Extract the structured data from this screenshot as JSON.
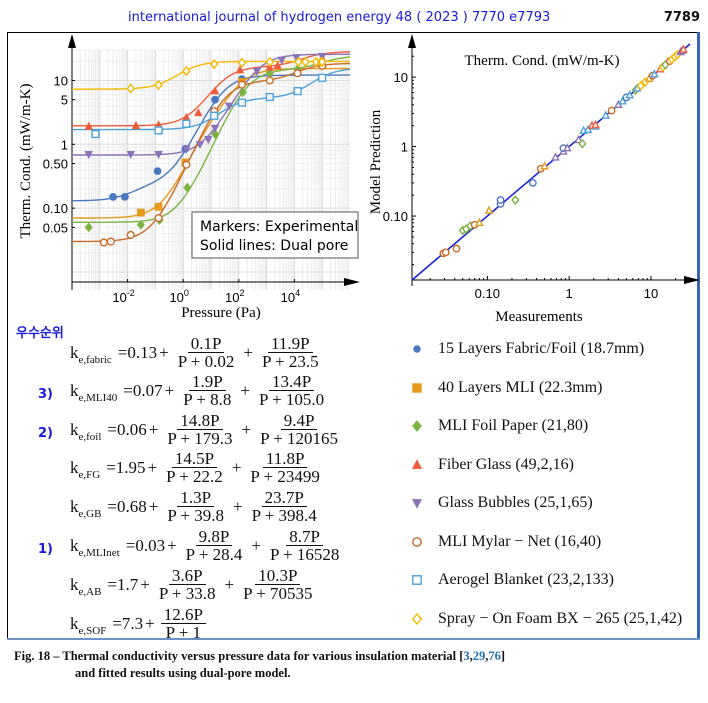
{
  "header": {
    "journal": "international journal of hydrogen energy 48 ( 2023 ) 7770 e7793",
    "page_number": "7789"
  },
  "chart_data": [
    {
      "type": "line",
      "title": "",
      "xlabel": "Pressure (Pa)",
      "ylabel": "Therm. Cond. (mW/m-K)",
      "xscale": "log",
      "yscale": "log",
      "xlim": [
        0.0001,
        1000000
      ],
      "ylim": [
        0.01,
        30
      ],
      "xticks": [
        {
          "value": 0.01,
          "label": "10",
          "exp": "-2"
        },
        {
          "value": 1,
          "label": "10",
          "exp": "0"
        },
        {
          "value": 100,
          "label": "10",
          "exp": "2"
        },
        {
          "value": 10000,
          "label": "10",
          "exp": "4"
        }
      ],
      "yticks": [
        {
          "value": 0.05,
          "label": "0.05"
        },
        {
          "value": 0.1,
          "label": "0.10"
        },
        {
          "value": 0.5,
          "label": "0.50"
        },
        {
          "value": 1,
          "label": "1"
        },
        {
          "value": 5,
          "label": "5"
        },
        {
          "value": 10,
          "label": "10"
        }
      ],
      "grid": true,
      "annotation": [
        "Markers: Experimental",
        "Solid lines: Dual pore"
      ],
      "annotation_position": "bottom-right",
      "series": [
        {
          "name": "15 Layers Fabric/Foil (18.7mm)",
          "color": "#4a78c0",
          "marker": "circle-filled",
          "fit": {
            "k0": 0.13,
            "terms": [
              [
                0.1,
                0.02
              ],
              [
                11.9,
                23.5
              ]
            ]
          },
          "points": [
            [
              0.003,
              0.15
            ],
            [
              0.008,
              0.15
            ],
            [
              0.12,
              0.38
            ],
            [
              1.2,
              0.85
            ],
            [
              14,
              5.0
            ],
            [
              130,
              10.5
            ]
          ]
        },
        {
          "name": "40 Layers MLI (22.3mm)",
          "color": "#e69a1f",
          "marker": "square-filled",
          "fit": {
            "k0": 0.07,
            "terms": [
              [
                1.9,
                8.8
              ],
              [
                13.4,
                105.0
              ]
            ]
          },
          "points": [
            [
              0.03,
              0.085
            ],
            [
              0.13,
              0.105
            ],
            [
              1.2,
              0.52
            ],
            [
              13,
              2.8
            ],
            [
              130,
              9.5
            ]
          ]
        },
        {
          "name": "MLI Foil Paper (21,80)",
          "color": "#7cb342",
          "marker": "diamond-filled",
          "fit": {
            "k0": 0.06,
            "terms": [
              [
                14.8,
                179.3
              ],
              [
                9.4,
                120165
              ]
            ]
          },
          "points": [
            [
              0.0004,
              0.05
            ],
            [
              0.03,
              0.055
            ],
            [
              0.14,
              0.065
            ],
            [
              1.4,
              0.21
            ],
            [
              14,
              1.45
            ],
            [
              140,
              6.5
            ],
            [
              1300,
              13
            ],
            [
              13000,
              15
            ],
            [
              100000,
              18
            ]
          ]
        },
        {
          "name": "Fiber Glass (49,2,16)",
          "color": "#ef5b3a",
          "marker": "triangle-up-filled",
          "fit": {
            "k0": 1.95,
            "terms": [
              [
                14.5,
                22.2
              ],
              [
                11.8,
                23499
              ]
            ]
          },
          "points": [
            [
              0.0004,
              1.9
            ],
            [
              0.02,
              1.95
            ],
            [
              0.13,
              2.0
            ],
            [
              1.3,
              2.6
            ],
            [
              3.5,
              3.1
            ],
            [
              14,
              6.8
            ],
            [
              110,
              14.5
            ],
            [
              1300,
              16
            ],
            [
              2500,
              17
            ],
            [
              100000,
              22
            ]
          ]
        },
        {
          "name": "Glass Bubbles (25,1,65)",
          "color": "#8a72b8",
          "marker": "triangle-down-filled",
          "fit": {
            "k0": 0.68,
            "terms": [
              [
                1.3,
                39.8
              ],
              [
                23.7,
                398.4
              ]
            ]
          },
          "points": [
            [
              0.0004,
              0.7
            ],
            [
              0.013,
              0.7
            ],
            [
              0.13,
              0.7
            ],
            [
              1.3,
              0.85
            ],
            [
              4,
              1.0
            ],
            [
              8,
              1.2
            ],
            [
              14,
              1.8
            ],
            [
              45,
              4.0
            ],
            [
              450,
              14
            ],
            [
              3500,
              21
            ],
            [
              12000,
              23
            ],
            [
              100000,
              24
            ]
          ]
        },
        {
          "name": "MLI Mylar - Net (16,40)",
          "color": "#c96a28",
          "marker": "circle-open",
          "fit": {
            "k0": 0.03,
            "terms": [
              [
                9.8,
                28.4
              ],
              [
                8.7,
                16528
              ]
            ]
          },
          "points": [
            [
              0.0014,
              0.029
            ],
            [
              0.0025,
              0.03
            ],
            [
              0.013,
              0.038
            ],
            [
              0.13,
              0.07
            ],
            [
              1.3,
              0.48
            ],
            [
              13,
              3.3
            ],
            [
              130,
              8.6
            ],
            [
              1300,
              10
            ],
            [
              13000,
              13
            ],
            [
              100000,
              17
            ]
          ]
        },
        {
          "name": "Aerogel Blanket (23,2,133)",
          "color": "#4ea0d8",
          "marker": "square-open",
          "fit": {
            "k0": 1.7,
            "terms": [
              [
                3.6,
                33.8
              ],
              [
                10.3,
                70535
              ]
            ]
          },
          "points": [
            [
              0.0007,
              1.45
            ],
            [
              0.13,
              1.65
            ],
            [
              1.3,
              2.1
            ],
            [
              13,
              2.8
            ],
            [
              130,
              4.5
            ],
            [
              1300,
              5.5
            ],
            [
              13000,
              6.8
            ],
            [
              100000,
              11
            ]
          ]
        },
        {
          "name": "Spray - On Foam BX - 265 (25,1,42)",
          "color": "#f5b800",
          "marker": "diamond-open",
          "fit": {
            "k0": 7.3,
            "terms": [
              [
                12.6,
                1
              ]
            ]
          },
          "points": [
            [
              0.013,
              7.5
            ],
            [
              0.13,
              8.5
            ],
            [
              1.3,
              14
            ],
            [
              13,
              18
            ],
            [
              130,
              19
            ],
            [
              1300,
              19.5
            ],
            [
              14000,
              19.5
            ],
            [
              25000,
              19.5
            ],
            [
              60000,
              19.5
            ],
            [
              90000,
              19.5
            ],
            [
              100000,
              19.5
            ]
          ]
        }
      ]
    },
    {
      "type": "scatter",
      "title": "Therm. Cond. (mW/m-K)",
      "xlabel": "Measurements",
      "ylabel": "Model Prediction",
      "xscale": "log",
      "yscale": "log",
      "xlim": [
        0.012,
        30
      ],
      "ylim": [
        0.012,
        30
      ],
      "xticks": [
        {
          "value": 0.1,
          "label": "0.10"
        },
        {
          "value": 1,
          "label": "1"
        },
        {
          "value": 10,
          "label": "10"
        }
      ],
      "yticks": [
        {
          "value": 0.1,
          "label": "0.10"
        },
        {
          "value": 1,
          "label": "1"
        },
        {
          "value": 10,
          "label": "10"
        }
      ],
      "reference_line": {
        "label": "y = x",
        "color": "#1a22d8"
      },
      "points": [
        {
          "x": 0.029,
          "y": 0.029,
          "color": "#c96a28",
          "m": "o"
        },
        {
          "x": 0.031,
          "y": 0.03,
          "color": "#c96a28",
          "m": "o"
        },
        {
          "x": 0.042,
          "y": 0.034,
          "color": "#c96a28",
          "m": "o"
        },
        {
          "x": 0.05,
          "y": 0.062,
          "color": "#7cb342",
          "m": "d"
        },
        {
          "x": 0.055,
          "y": 0.065,
          "color": "#7cb342",
          "m": "d"
        },
        {
          "x": 0.062,
          "y": 0.072,
          "color": "#7cb342",
          "m": "d"
        },
        {
          "x": 0.07,
          "y": 0.075,
          "color": "#c96a28",
          "m": "o"
        },
        {
          "x": 0.08,
          "y": 0.08,
          "color": "#e69a1f",
          "m": "t"
        },
        {
          "x": 0.105,
          "y": 0.12,
          "color": "#e69a1f",
          "m": "t"
        },
        {
          "x": 0.145,
          "y": 0.15,
          "color": "#4a78c0",
          "m": "o"
        },
        {
          "x": 0.145,
          "y": 0.17,
          "color": "#4a78c0",
          "m": "o"
        },
        {
          "x": 0.22,
          "y": 0.17,
          "color": "#7cb342",
          "m": "d"
        },
        {
          "x": 0.36,
          "y": 0.3,
          "color": "#4a78c0",
          "m": "o"
        },
        {
          "x": 0.45,
          "y": 0.48,
          "color": "#c96a28",
          "m": "o"
        },
        {
          "x": 0.5,
          "y": 0.52,
          "color": "#e69a1f",
          "m": "t"
        },
        {
          "x": 0.68,
          "y": 0.7,
          "color": "#8a72b8",
          "m": "t"
        },
        {
          "x": 0.85,
          "y": 0.85,
          "color": "#8a72b8",
          "m": "t"
        },
        {
          "x": 0.85,
          "y": 0.95,
          "color": "#4a78c0",
          "m": "o"
        },
        {
          "x": 0.95,
          "y": 0.95,
          "color": "#8a72b8",
          "m": "t"
        },
        {
          "x": 1.3,
          "y": 1.25,
          "color": "#8a72b8",
          "m": "t"
        },
        {
          "x": 1.45,
          "y": 1.1,
          "color": "#7cb342",
          "m": "d"
        },
        {
          "x": 1.5,
          "y": 1.7,
          "color": "#4ea0d8",
          "m": "t"
        },
        {
          "x": 1.7,
          "y": 1.75,
          "color": "#4ea0d8",
          "m": "t"
        },
        {
          "x": 1.9,
          "y": 2.0,
          "color": "#ef5b3a",
          "m": "t"
        },
        {
          "x": 2.1,
          "y": 1.95,
          "color": "#4ea0d8",
          "m": "t"
        },
        {
          "x": 2.1,
          "y": 2.05,
          "color": "#ef5b3a",
          "m": "t"
        },
        {
          "x": 2.8,
          "y": 2.8,
          "color": "#4ea0d8",
          "m": "t"
        },
        {
          "x": 3.3,
          "y": 3.3,
          "color": "#c96a28",
          "m": "o"
        },
        {
          "x": 4.0,
          "y": 4.0,
          "color": "#8a72b8",
          "m": "t"
        },
        {
          "x": 4.5,
          "y": 4.5,
          "color": "#4ea0d8",
          "m": "t"
        },
        {
          "x": 5.0,
          "y": 5.1,
          "color": "#4a78c0",
          "m": "o"
        },
        {
          "x": 5.5,
          "y": 5.5,
          "color": "#4ea0d8",
          "m": "t"
        },
        {
          "x": 6.5,
          "y": 6.5,
          "color": "#7cb342",
          "m": "d"
        },
        {
          "x": 6.8,
          "y": 6.9,
          "color": "#4ea0d8",
          "m": "t"
        },
        {
          "x": 7.5,
          "y": 7.5,
          "color": "#f5b800",
          "m": "d"
        },
        {
          "x": 8.5,
          "y": 8.5,
          "color": "#f5b800",
          "m": "d"
        },
        {
          "x": 9.5,
          "y": 9.5,
          "color": "#e69a1f",
          "m": "t"
        },
        {
          "x": 10.5,
          "y": 10.5,
          "color": "#c96a28",
          "m": "o"
        },
        {
          "x": 11,
          "y": 11,
          "color": "#4ea0d8",
          "m": "t"
        },
        {
          "x": 13,
          "y": 13,
          "color": "#ef5b3a",
          "m": "t"
        },
        {
          "x": 14,
          "y": 14,
          "color": "#f5b800",
          "m": "d"
        },
        {
          "x": 15,
          "y": 15,
          "color": "#7cb342",
          "m": "d"
        },
        {
          "x": 17,
          "y": 17,
          "color": "#c96a28",
          "m": "o"
        },
        {
          "x": 18,
          "y": 18,
          "color": "#f5b800",
          "m": "d"
        },
        {
          "x": 19.5,
          "y": 19.5,
          "color": "#f5b800",
          "m": "d"
        },
        {
          "x": 21,
          "y": 21,
          "color": "#f5b800",
          "m": "d"
        },
        {
          "x": 23,
          "y": 23,
          "color": "#8a72b8",
          "m": "t"
        },
        {
          "x": 24,
          "y": 24,
          "color": "#8a72b8",
          "m": "t"
        },
        {
          "x": 25,
          "y": 25,
          "color": "#ef5b3a",
          "m": "t"
        }
      ]
    }
  ],
  "ranking": {
    "title": "우수순위",
    "labels": [
      "3)",
      "2)",
      "1)"
    ]
  },
  "equations": [
    {
      "name": "fabric",
      "lhs": "k",
      "sub": "e,fabric",
      "k0": "0.13",
      "fracs": [
        [
          "0.1P",
          "P + 0.02"
        ],
        [
          "11.9P",
          "P + 23.5"
        ]
      ],
      "rank": ""
    },
    {
      "name": "MLI40",
      "lhs": "k",
      "sub": "e,MLI40",
      "k0": "0.07",
      "fracs": [
        [
          "1.9P",
          "P + 8.8"
        ],
        [
          "13.4P",
          "P + 105.0"
        ]
      ],
      "rank": "3)"
    },
    {
      "name": "foil",
      "lhs": "k",
      "sub": "e,foil",
      "k0": "0.06",
      "fracs": [
        [
          "14.8P",
          "P + 179.3"
        ],
        [
          "9.4P",
          "P + 120165"
        ]
      ],
      "rank": "2)"
    },
    {
      "name": "FG",
      "lhs": "k",
      "sub": "e,FG",
      "k0": "1.95",
      "fracs": [
        [
          "14.5P",
          "P + 22.2"
        ],
        [
          "11.8P",
          "P + 23499"
        ]
      ],
      "rank": ""
    },
    {
      "name": "GB",
      "lhs": "k",
      "sub": "e,GB",
      "k0": "0.68",
      "fracs": [
        [
          "1.3P",
          "P + 39.8"
        ],
        [
          "23.7P",
          "P + 398.4"
        ]
      ],
      "rank": ""
    },
    {
      "name": "MLInet",
      "lhs": "k",
      "sub": "e,MLInet",
      "k0": "0.03",
      "fracs": [
        [
          "9.8P",
          "P + 28.4"
        ],
        [
          "8.7P",
          "P + 16528"
        ]
      ],
      "rank": "1)"
    },
    {
      "name": "AB",
      "lhs": "k",
      "sub": "e,AB",
      "k0": "1.7",
      "fracs": [
        [
          "3.6P",
          "P + 33.8"
        ],
        [
          "10.3P",
          "P + 70535"
        ]
      ],
      "rank": ""
    },
    {
      "name": "SOF",
      "lhs": "k",
      "sub": "e,SOF",
      "k0": "7.3",
      "fracs": [
        [
          "12.6P",
          "P + 1"
        ]
      ],
      "rank": ""
    }
  ],
  "legend": [
    {
      "label": "15 Layers Fabric/Foil (18.7mm)",
      "marker": "circle-filled",
      "color": "#4a78c0"
    },
    {
      "label": "40 Layers MLI (22.3mm)",
      "marker": "square-filled",
      "color": "#e69a1f"
    },
    {
      "label": "MLI Foil Paper (21,80)",
      "marker": "diamond-filled",
      "color": "#7cb342"
    },
    {
      "label": "Fiber Glass (49,2,16)",
      "marker": "triangle-up-filled",
      "color": "#ef5b3a"
    },
    {
      "label": "Glass Bubbles (25,1,65)",
      "marker": "triangle-down-filled",
      "color": "#8a72b8"
    },
    {
      "label": "MLI Mylar − Net (16,40)",
      "marker": "circle-open",
      "color": "#c96a28"
    },
    {
      "label": "Aerogel Blanket (23,2,133)",
      "marker": "square-open",
      "color": "#4ea0d8"
    },
    {
      "label": "Spray − On Foam BX − 265 (25,1,42)",
      "marker": "diamond-open",
      "color": "#f5b800"
    }
  ],
  "caption": {
    "prefix": "Fig. 18 – Thermal conductivity versus pressure data for various insulation material [",
    "refs": [
      "3",
      "29",
      "76"
    ],
    "suffix": "]",
    "line2": "and fitted results using dual-pore model."
  }
}
